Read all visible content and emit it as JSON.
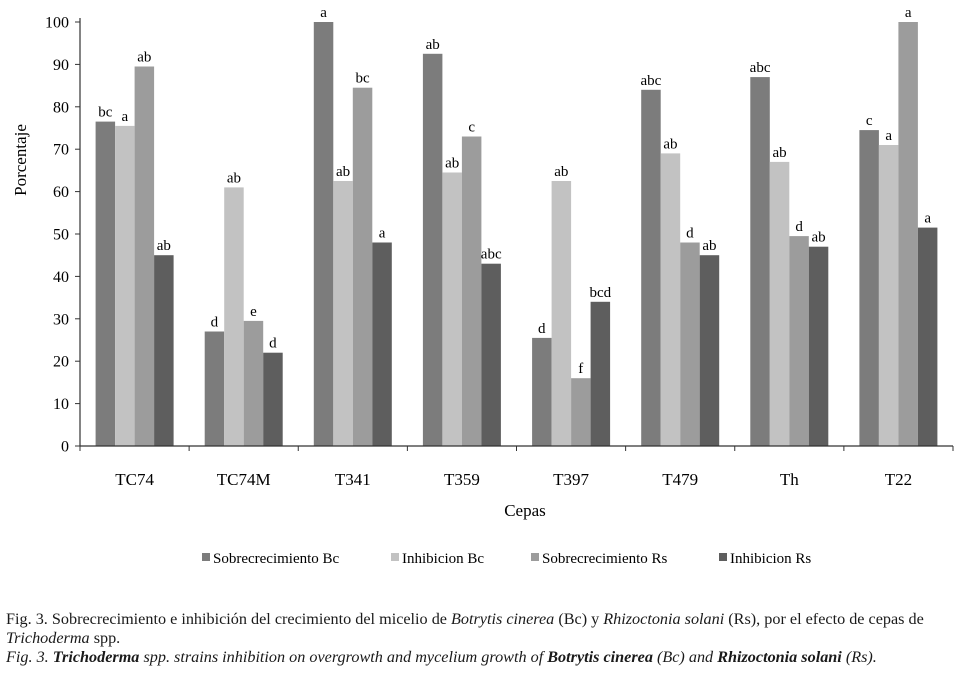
{
  "chart_data": {
    "type": "bar",
    "ylabel": "Porcentaje",
    "xlabel": "Cepas",
    "ylim": [
      0,
      100
    ],
    "yticks": [
      0,
      10,
      20,
      30,
      40,
      50,
      60,
      70,
      80,
      90,
      100
    ],
    "categories": [
      "TC74",
      "TC74M",
      "T341",
      "T359",
      "T397",
      "T479",
      "Th",
      "T22"
    ],
    "grid": false,
    "legend_position": "bottom",
    "series": [
      {
        "name": "Sobrecrecimiento Bc",
        "color": "#7c7c7c",
        "values": [
          76.5,
          27,
          100,
          92.5,
          25.5,
          84,
          87,
          74.5
        ],
        "labels": [
          "bc",
          "d",
          "a",
          "ab",
          "d",
          "abc",
          "abc",
          "c"
        ]
      },
      {
        "name": "Inhibicion Bc",
        "color": "#c2c2c2",
        "values": [
          75.5,
          61,
          62.5,
          64.5,
          62.5,
          69,
          67,
          71
        ],
        "labels": [
          "a",
          "ab",
          "ab",
          "ab",
          "ab",
          "ab",
          "ab",
          "a"
        ]
      },
      {
        "name": "Sobrecrecimiento Rs",
        "color": "#9c9c9c",
        "values": [
          89.5,
          29.5,
          84.5,
          73,
          16,
          48,
          49.5,
          100
        ],
        "labels": [
          "ab",
          "e",
          "bc",
          "c",
          "f",
          "d",
          "d",
          "a"
        ]
      },
      {
        "name": "Inhibicion Rs",
        "color": "#5e5e5e",
        "values": [
          45,
          22,
          48,
          43,
          34,
          45,
          47,
          51.5
        ],
        "labels": [
          "ab",
          "d",
          "a",
          "abc",
          "bcd",
          "ab",
          "ab",
          "a"
        ]
      }
    ]
  },
  "caption": {
    "es_parts": [
      {
        "t": "Fig. 3. Sobrecrecimiento e inhibición del crecimiento del micelio de ",
        "s": "n"
      },
      {
        "t": "Botrytis cinerea",
        "s": "i"
      },
      {
        "t": " (Bc) y ",
        "s": "n"
      },
      {
        "t": "Rhizoctonia solani",
        "s": "i"
      },
      {
        "t": " (Rs), por el efecto de cepas de ",
        "s": "n"
      },
      {
        "t": "Trichoderma",
        "s": "i"
      },
      {
        "t": " spp.",
        "s": "n"
      }
    ],
    "en_parts": [
      {
        "t": "Fig. 3. ",
        "s": "n"
      },
      {
        "t": "Trichoderma",
        "s": "b"
      },
      {
        "t": " spp. strains inhibition on overgrowth and mycelium growth of ",
        "s": "n"
      },
      {
        "t": "Botrytis cinerea",
        "s": "b"
      },
      {
        "t": " (Bc) and ",
        "s": "n"
      },
      {
        "t": "Rhizoctonia solani",
        "s": "b"
      },
      {
        "t": " (Rs).",
        "s": "n"
      }
    ]
  }
}
